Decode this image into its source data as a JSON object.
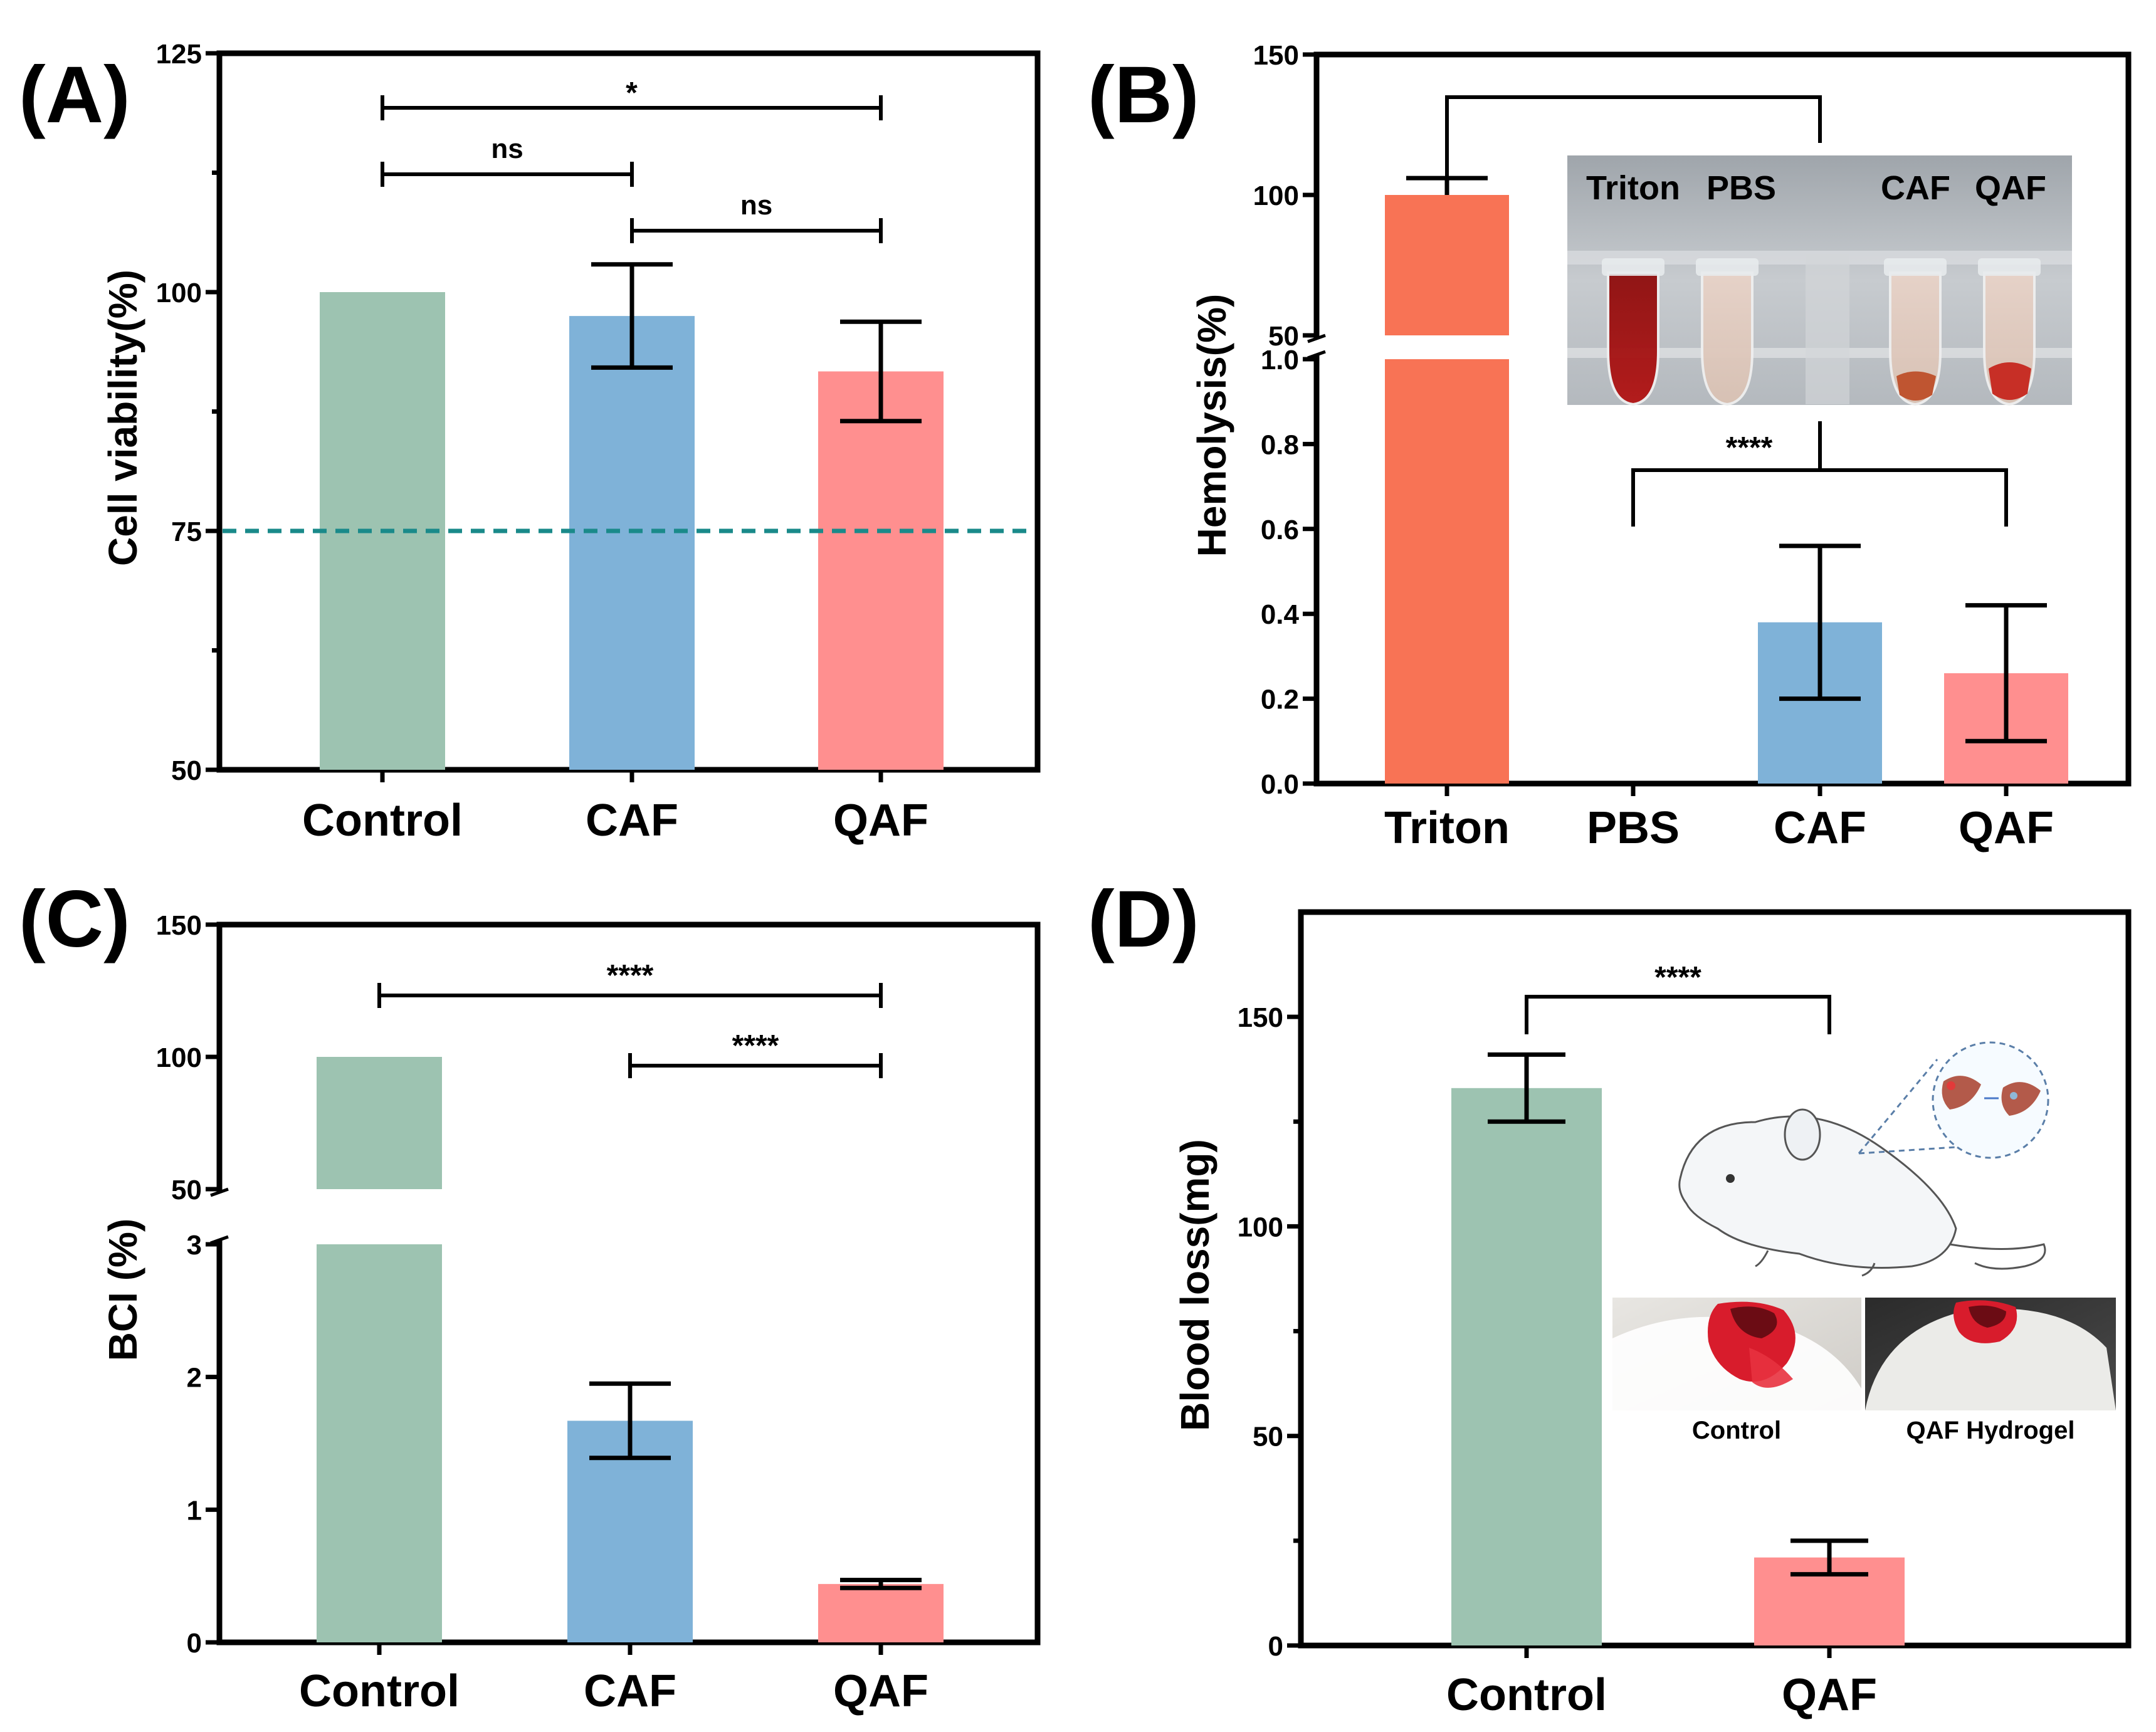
{
  "chart_data": [
    {
      "panel": "(A)",
      "type": "bar",
      "categories": [
        "Control",
        "CAF",
        "QAF"
      ],
      "values": [
        100,
        97.5,
        91.7
      ],
      "errors": [
        0,
        5.4,
        5.2
      ],
      "colors": [
        "#9dc3b1",
        "#7fb2d8",
        "#ff8f8f"
      ],
      "ylabel": "Cell viability(%)",
      "ylim": [
        50,
        125
      ],
      "yticks": [
        "50",
        "75",
        "100",
        "125"
      ],
      "reference_line": 75,
      "reference_color": "#1a8a8a",
      "significance": [
        {
          "from": 0,
          "to": 2,
          "label": "*"
        },
        {
          "from": 0,
          "to": 1,
          "label": "ns"
        },
        {
          "from": 1,
          "to": 2,
          "label": "ns"
        }
      ]
    },
    {
      "panel": "(B)",
      "type": "bar",
      "categories": [
        "Triton",
        "PBS",
        "CAF",
        "QAF"
      ],
      "values": [
        100,
        0,
        0.38,
        0.26
      ],
      "errors": [
        6,
        0,
        0.18,
        0.16
      ],
      "colors": [
        "#f87355",
        "#f87355",
        "#7fb2d8",
        "#ff8f8f"
      ],
      "ylabel": "Hemolysis(%)",
      "axis_break": [
        1.0,
        50
      ],
      "ylim_lower": [
        0,
        1.0
      ],
      "ylim_upper": [
        50,
        150
      ],
      "yticks_lower": [
        "0.0",
        "0.2",
        "0.4",
        "0.6",
        "0.8",
        "1.0"
      ],
      "yticks_upper": [
        "50",
        "100",
        "150"
      ],
      "significance": [
        {
          "from": 1,
          "to": 3,
          "label": "****"
        }
      ],
      "inset_labels": [
        "Triton",
        "PBS",
        "CAF",
        "QAF"
      ]
    },
    {
      "panel": "(C)",
      "type": "bar",
      "categories": [
        "Control",
        "CAF",
        "QAF"
      ],
      "values": [
        100,
        1.67,
        0.44
      ],
      "errors": [
        0,
        0.28,
        0.03
      ],
      "colors": [
        "#9dc3b1",
        "#7fb2d8",
        "#ff8f8f"
      ],
      "ylabel": "BCI (%)",
      "axis_break": [
        3,
        50
      ],
      "ylim_lower": [
        0,
        3
      ],
      "ylim_upper": [
        50,
        150
      ],
      "yticks_lower": [
        "0",
        "1",
        "2",
        "3"
      ],
      "yticks_upper": [
        "50",
        "100",
        "150"
      ],
      "significance": [
        {
          "from": 0,
          "to": 2,
          "label": "****"
        },
        {
          "from": 1,
          "to": 2,
          "label": "****"
        }
      ]
    },
    {
      "panel": "(D)",
      "type": "bar",
      "categories": [
        "Control",
        "QAF"
      ],
      "values": [
        133,
        21
      ],
      "errors": [
        8,
        4
      ],
      "colors": [
        "#9dc3b1",
        "#ff8f8f"
      ],
      "ylabel": "Blood loss(mg)",
      "ylim": [
        0,
        175
      ],
      "yticks": [
        "0",
        "50",
        "100",
        "150"
      ],
      "significance": [
        {
          "from": 0,
          "to": 1,
          "label": "****"
        }
      ],
      "inset_captions": [
        "Control",
        "QAF Hydrogel"
      ]
    }
  ]
}
